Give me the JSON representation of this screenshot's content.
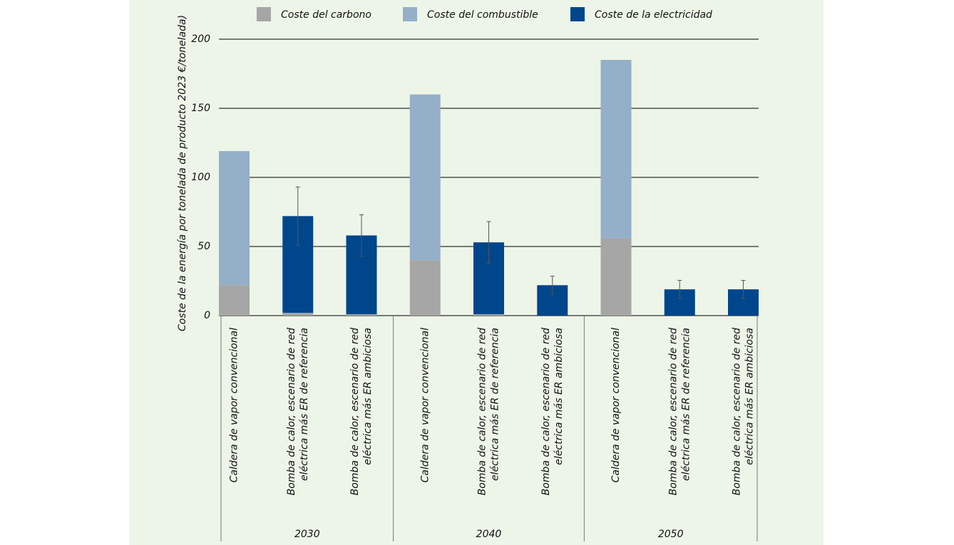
{
  "chart_data": {
    "type": "stacked-bar",
    "ylabel": "Coste de la energía por tonelada de producto 2023 €/tonelada)",
    "categories": [
      [
        "Caldera de vapor convencional"
      ],
      [
        "Bomba de calor, escenario de red",
        "eléctrica más ER de referencia"
      ],
      [
        "Bomba de calor, escenario de red",
        "eléctrica más ER ambiciosa"
      ],
      [
        "Caldera de vapor convencional"
      ],
      [
        "Bomba de calor, escenario de red",
        "eléctrica más ER de referencia"
      ],
      [
        "Bomba de calor, escenario de red",
        "eléctrica más ER ambiciosa"
      ],
      [
        "Caldera de vapor convencional"
      ],
      [
        "Bomba de calor, escenario de red",
        "eléctrica más ER de referencia"
      ],
      [
        "Bomba de calor, escenario de red",
        "eléctrica más ER ambiciosa"
      ]
    ],
    "groups": [
      "2030",
      "2040",
      "2050"
    ],
    "series": [
      {
        "name": "Coste del carbono",
        "color": "#a6a6a6",
        "values": [
          22,
          2,
          1,
          40,
          1,
          0,
          56,
          0,
          0
        ]
      },
      {
        "name": "Coste del combustible",
        "color": "#94afc8",
        "values": [
          97,
          0,
          0,
          120,
          0,
          0,
          129,
          0,
          0
        ]
      },
      {
        "name": "Coste de la electricidad",
        "color": "#00468b",
        "values": [
          0,
          70,
          57,
          0,
          52,
          22,
          0,
          19,
          19
        ],
        "errors": [
          null,
          21,
          15,
          null,
          15,
          6.5,
          null,
          6.5,
          6.5
        ]
      }
    ],
    "ylim": [
      0,
      200
    ],
    "yticks": [
      0,
      50,
      100,
      150,
      200
    ],
    "grid": true
  }
}
